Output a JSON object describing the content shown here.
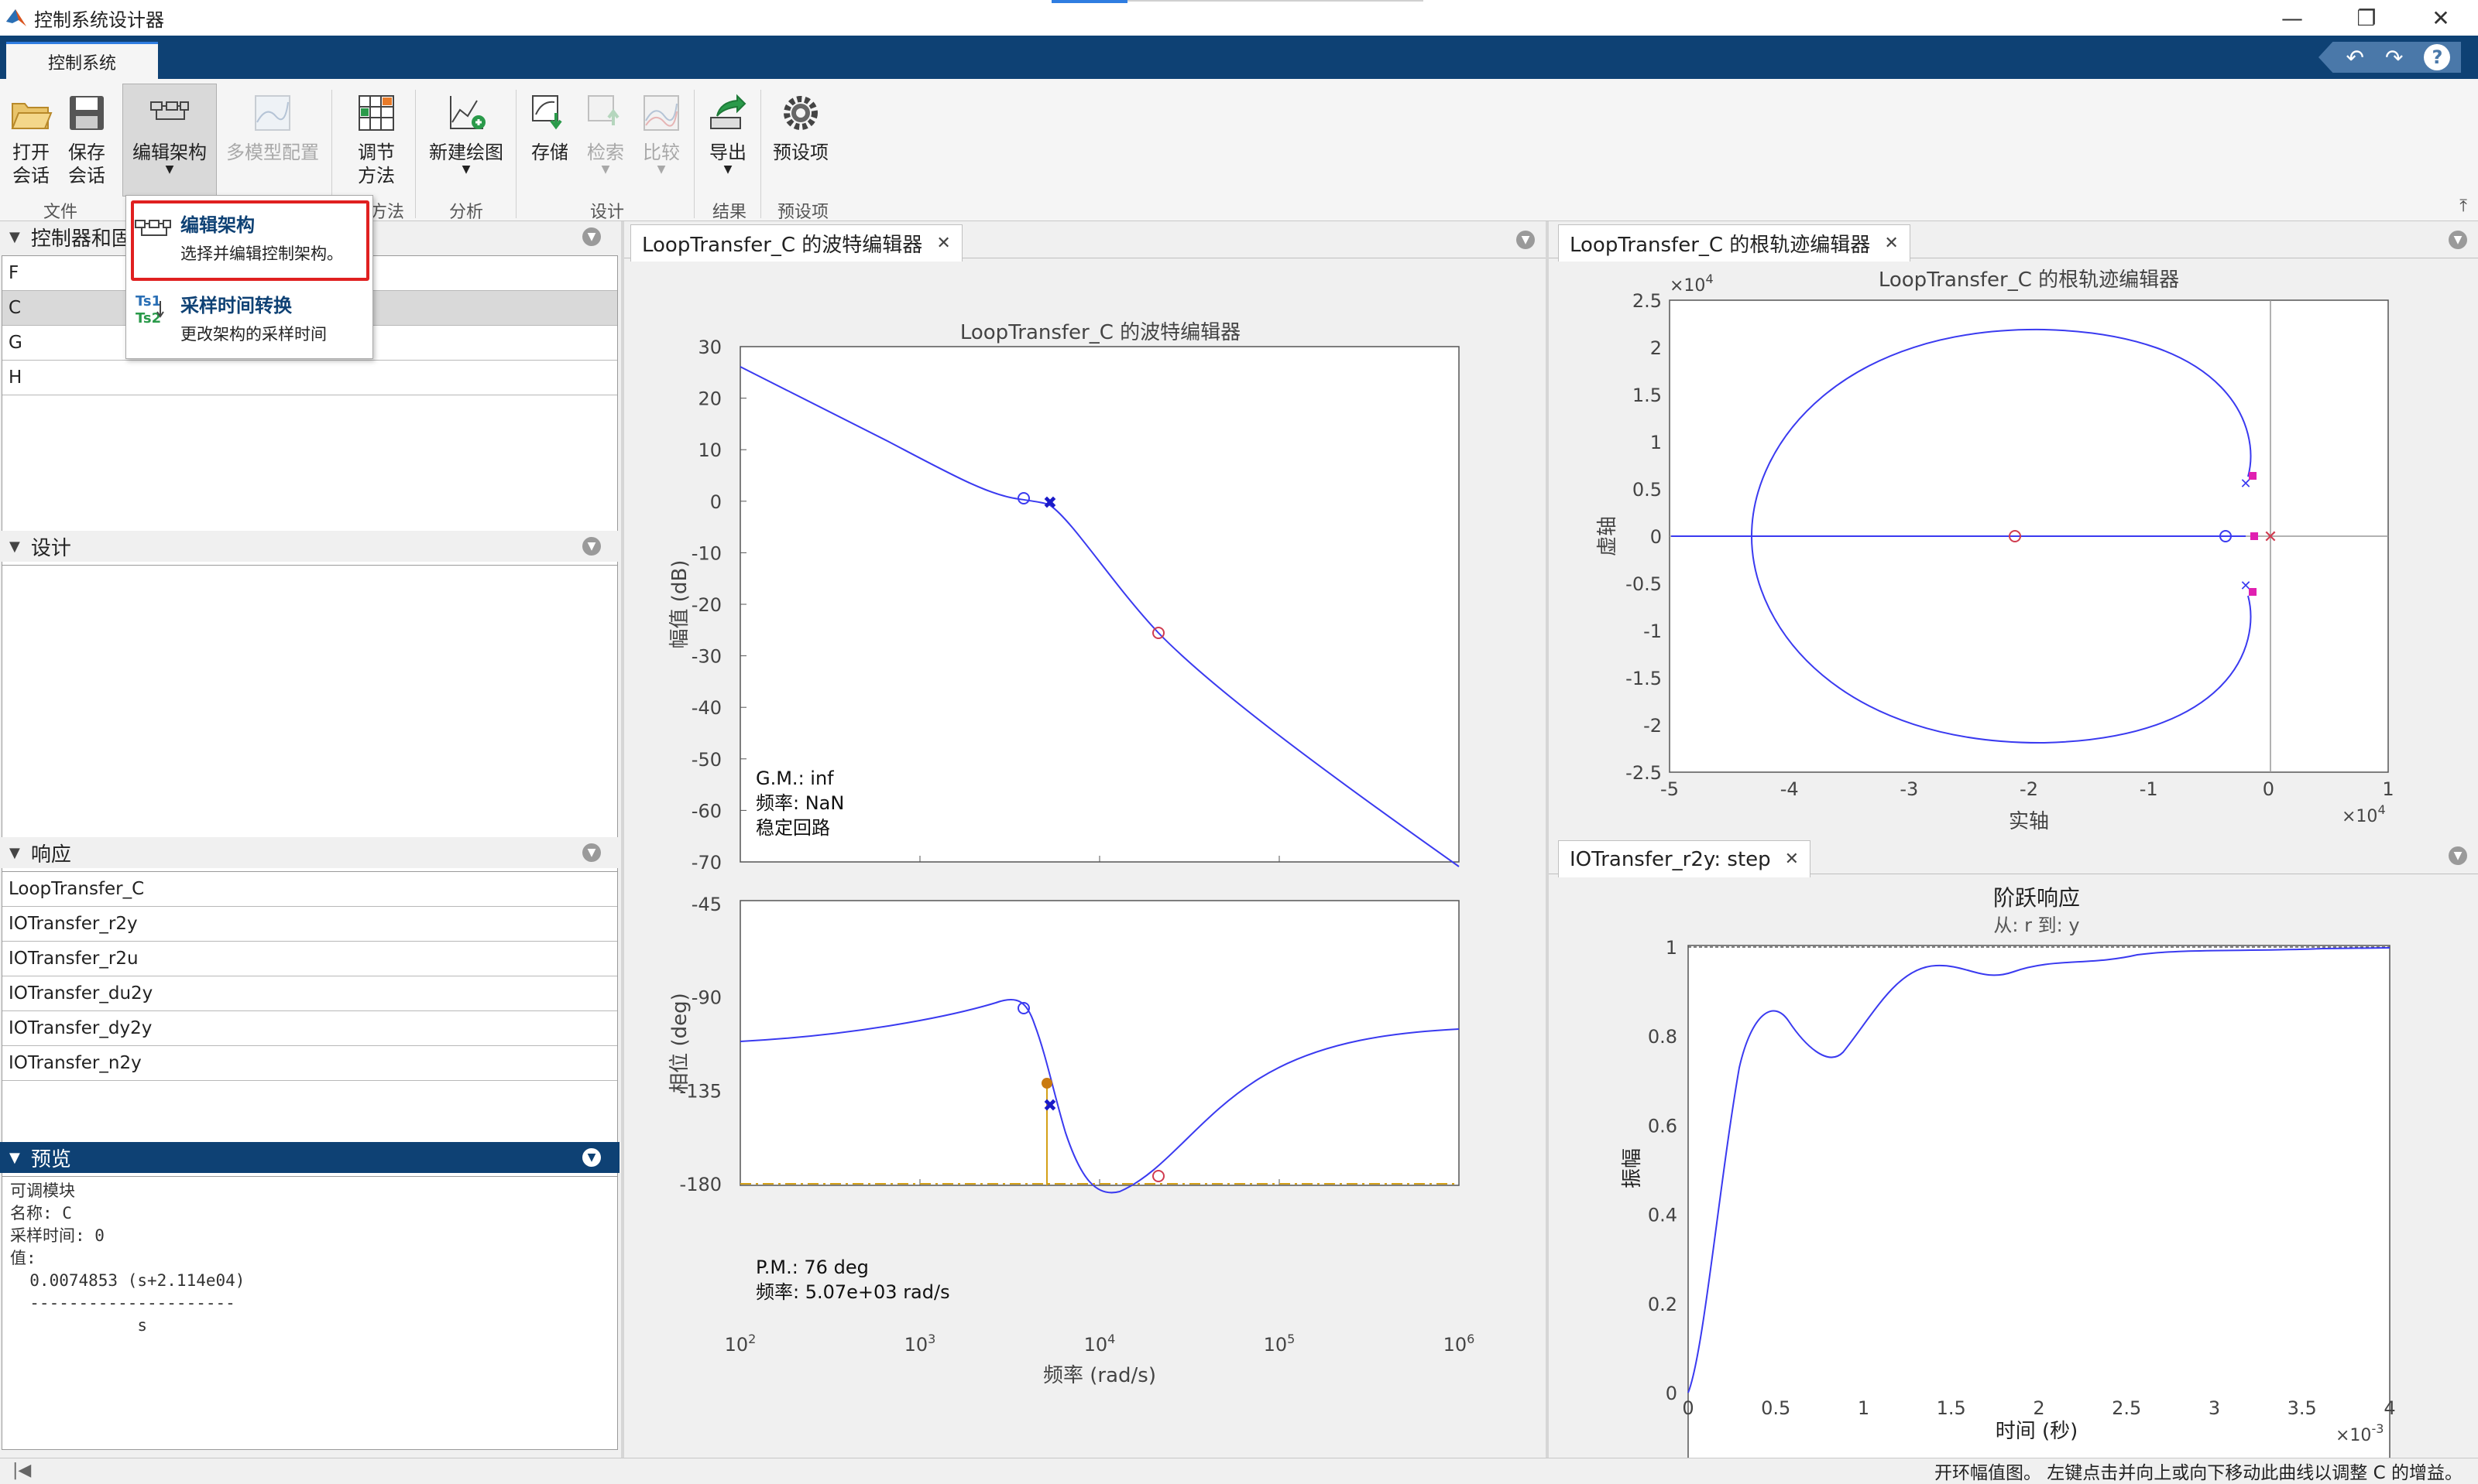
{
  "window": {
    "title": "控制系统设计器",
    "min": "—",
    "restore": "❐",
    "close": "✕"
  },
  "tab": {
    "label": "控制系统"
  },
  "toolbar": {
    "open_session": "打开\n会话",
    "save_session": "保存\n会话",
    "edit_arch": "编辑架构",
    "multimodel": "多模型配置",
    "tuning": "调节\n方法",
    "new_plot": "新建绘图",
    "store": "存储",
    "retrieve": "检索",
    "compare": "比较",
    "export": "导出",
    "preferences": "预设项",
    "groups": {
      "file": "文件",
      "tuning": "方法",
      "analysis": "分析",
      "design": "设计",
      "results": "结果",
      "prefs": "预设项"
    }
  },
  "dropdown": {
    "items": [
      {
        "title": "编辑架构",
        "desc": "选择并编辑控制架构。"
      },
      {
        "title": "采样时间转换",
        "desc": "更改架构的采样时间",
        "icon_top": "Ts1",
        "icon_bottom": "Ts2"
      }
    ]
  },
  "panels": {
    "controllers": {
      "title": "控制器和固定模块",
      "items": [
        "F",
        "C",
        "G",
        "H"
      ],
      "selected": "C"
    },
    "design": {
      "title": "设计"
    },
    "responses": {
      "title": "响应",
      "items": [
        "LoopTransfer_C",
        "IOTransfer_r2y",
        "IOTransfer_r2u",
        "IOTransfer_du2y",
        "IOTransfer_dy2y",
        "IOTransfer_n2y"
      ]
    },
    "preview": {
      "title": "预览",
      "lines": [
        "可调模块",
        "名称: C",
        "采样时间: 0",
        "值:",
        "  0.0074853 (s+2.114e04)",
        "  ---------------------",
        "             s"
      ]
    }
  },
  "doc_tabs": {
    "bode": "LoopTransfer_C 的波特编辑器",
    "rlocus": "LoopTransfer_C 的根轨迹编辑器",
    "step": "IOTransfer_r2y: step"
  },
  "bode": {
    "title": "LoopTransfer_C 的波特编辑器",
    "mag_ylabel": "幅值 (dB)",
    "phase_ylabel": "相位 (deg)",
    "xlabel": "频率 (rad/s)",
    "mag_ticks": [
      "30",
      "20",
      "10",
      "0",
      "-10",
      "-20",
      "-30",
      "-40",
      "-50",
      "-60",
      "-70"
    ],
    "phase_ticks": [
      "-45",
      "-90",
      "-135",
      "-180"
    ],
    "x_ticks": [
      [
        "10",
        "2"
      ],
      [
        "10",
        "3"
      ],
      [
        "10",
        "4"
      ],
      [
        "10",
        "5"
      ],
      [
        "10",
        "6"
      ]
    ],
    "gm": {
      "line1": "G.M.: inf",
      "line2": "频率: NaN",
      "line3": "稳定回路"
    },
    "pm": {
      "line1": "P.M.: 76 deg",
      "line2": "频率: 5.07e+03 rad/s"
    },
    "curve_color": "#3a3af0",
    "margin_color": "#d4a017"
  },
  "rlocus": {
    "title": "LoopTransfer_C 的根轨迹编辑器",
    "xlabel": "实轴",
    "ylabel": "虚轴",
    "x_ticks": [
      "-5",
      "-4",
      "-3",
      "-2",
      "-1",
      "0",
      "1"
    ],
    "y_ticks": [
      "2.5",
      "2",
      "1.5",
      "1",
      "0.5",
      "0",
      "-0.5",
      "-1",
      "-1.5",
      "-2",
      "-2.5"
    ],
    "x_exp": "×10",
    "x_exp_pow": "4",
    "y_exp": "×10",
    "y_exp_pow": "4"
  },
  "step": {
    "title": "阶跃响应",
    "subtitle": "从: r  到: y",
    "xlabel": "时间 (秒)",
    "ylabel": "振幅",
    "x_ticks": [
      "0",
      "0.5",
      "1",
      "1.5",
      "2",
      "2.5",
      "3",
      "3.5",
      "4"
    ],
    "y_ticks": [
      "1",
      "0.8",
      "0.6",
      "0.4",
      "0.2",
      "0"
    ],
    "x_exp": "×10",
    "x_exp_pow": "-3"
  },
  "status": {
    "message": "开环幅值图。 左键点击并向上或向下移动此曲线以调整 C 的增益。"
  }
}
